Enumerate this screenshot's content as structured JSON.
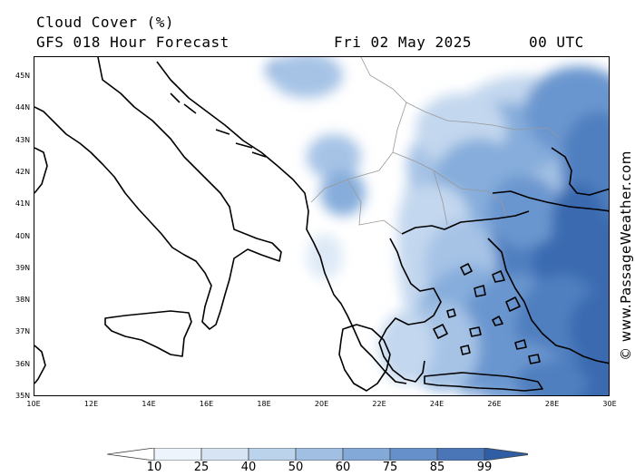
{
  "title": {
    "product": "Cloud Cover (%)",
    "model": "GFS 018 Hour Forecast",
    "date": "Fri 02 May 2025",
    "time": "00 UTC"
  },
  "map": {
    "lon_range": [
      10,
      30
    ],
    "lat_range": [
      35,
      45.5
    ],
    "lat_ticks": [
      "45N",
      "44N",
      "43N",
      "42N",
      "41N",
      "40N",
      "39N",
      "38N",
      "37N",
      "36N",
      "35N"
    ],
    "lon_ticks": [
      "10E",
      "12E",
      "14E",
      "16E",
      "18E",
      "20E",
      "22E",
      "24E",
      "26E",
      "28E",
      "30E"
    ],
    "cloud_colors": [
      "#f4f8fd",
      "#dde9f6",
      "#c3d7ee",
      "#a6c3e6",
      "#86addb",
      "#6a96cf",
      "#4f7fbf",
      "#3a6bb0"
    ]
  },
  "watermark": "© www.PassageWeather.com",
  "colorbar": {
    "labels": [
      "10",
      "25",
      "40",
      "50",
      "60",
      "75",
      "85",
      "99"
    ],
    "colors": [
      "#ffffff",
      "#eef4fb",
      "#d6e4f4",
      "#bcd3ec",
      "#a0bfe2",
      "#82a9d7",
      "#6690c9",
      "#4a76b8",
      "#2f5ea5"
    ]
  }
}
